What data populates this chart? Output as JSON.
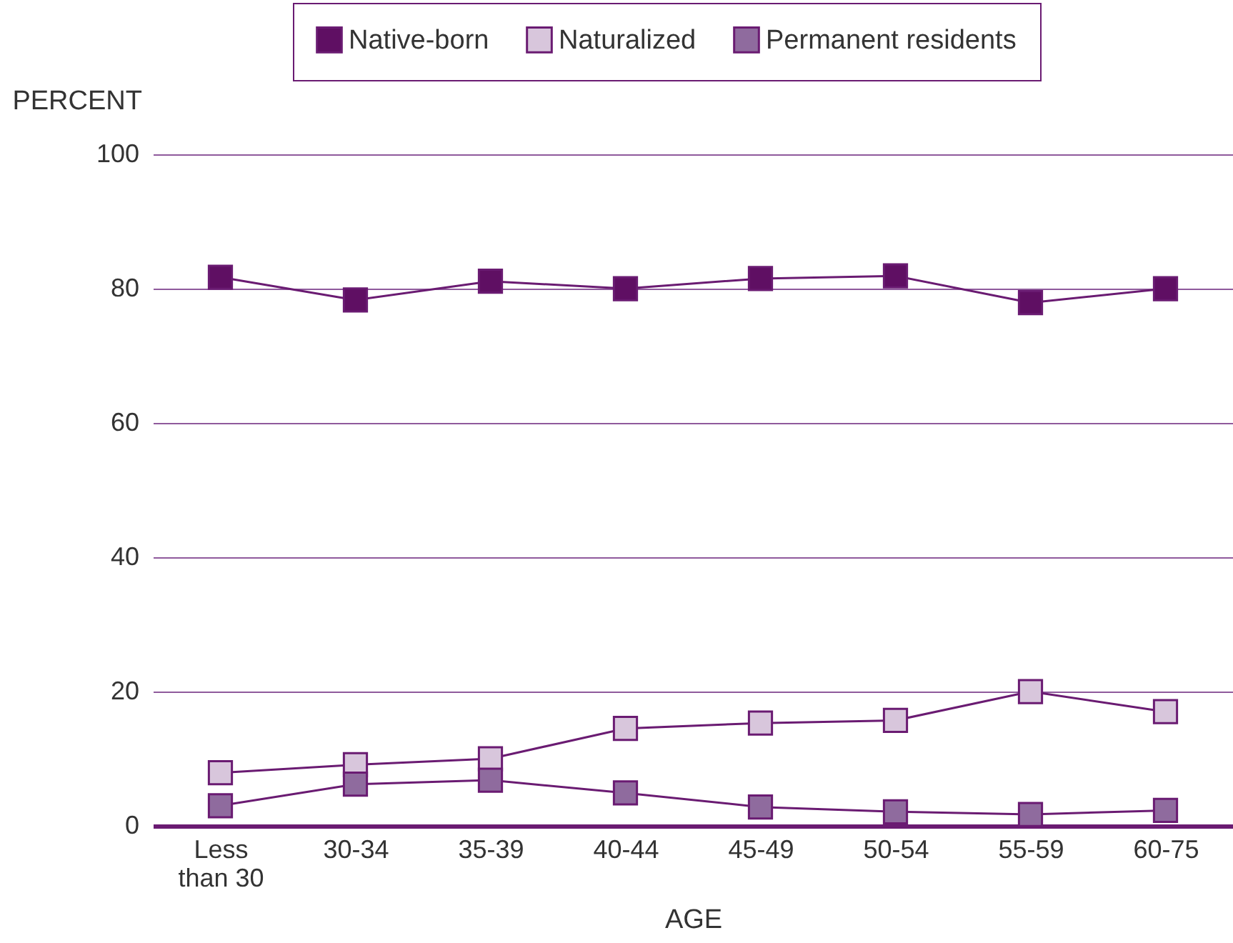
{
  "chart_data": {
    "type": "line",
    "xlabel": "AGE",
    "ylabel": "PERCENT",
    "categories": [
      "Less than 30",
      "30-34",
      "35-39",
      "40-44",
      "45-49",
      "50-54",
      "55-59",
      "60-75"
    ],
    "series": [
      {
        "name": "Native-born",
        "color": "#5f0f63",
        "values": [
          81.7,
          78.3,
          81.1,
          80.0,
          81.5,
          81.9,
          77.9,
          80.0
        ]
      },
      {
        "name": "Naturalized",
        "color": "#d8c6dc",
        "values": [
          7.9,
          9.1,
          10.0,
          14.5,
          15.3,
          15.7,
          20.0,
          17.0
        ]
      },
      {
        "name": "Permanent residents",
        "color": "#8f6b9e",
        "values": [
          3.0,
          6.2,
          6.8,
          4.9,
          2.8,
          2.1,
          1.7,
          2.3
        ]
      }
    ],
    "ylim": [
      0,
      100
    ],
    "yticks": [
      0,
      20,
      40,
      60,
      80,
      100
    ],
    "grid": "y",
    "legend": "top right",
    "marker": "square",
    "line_style": "solid"
  }
}
